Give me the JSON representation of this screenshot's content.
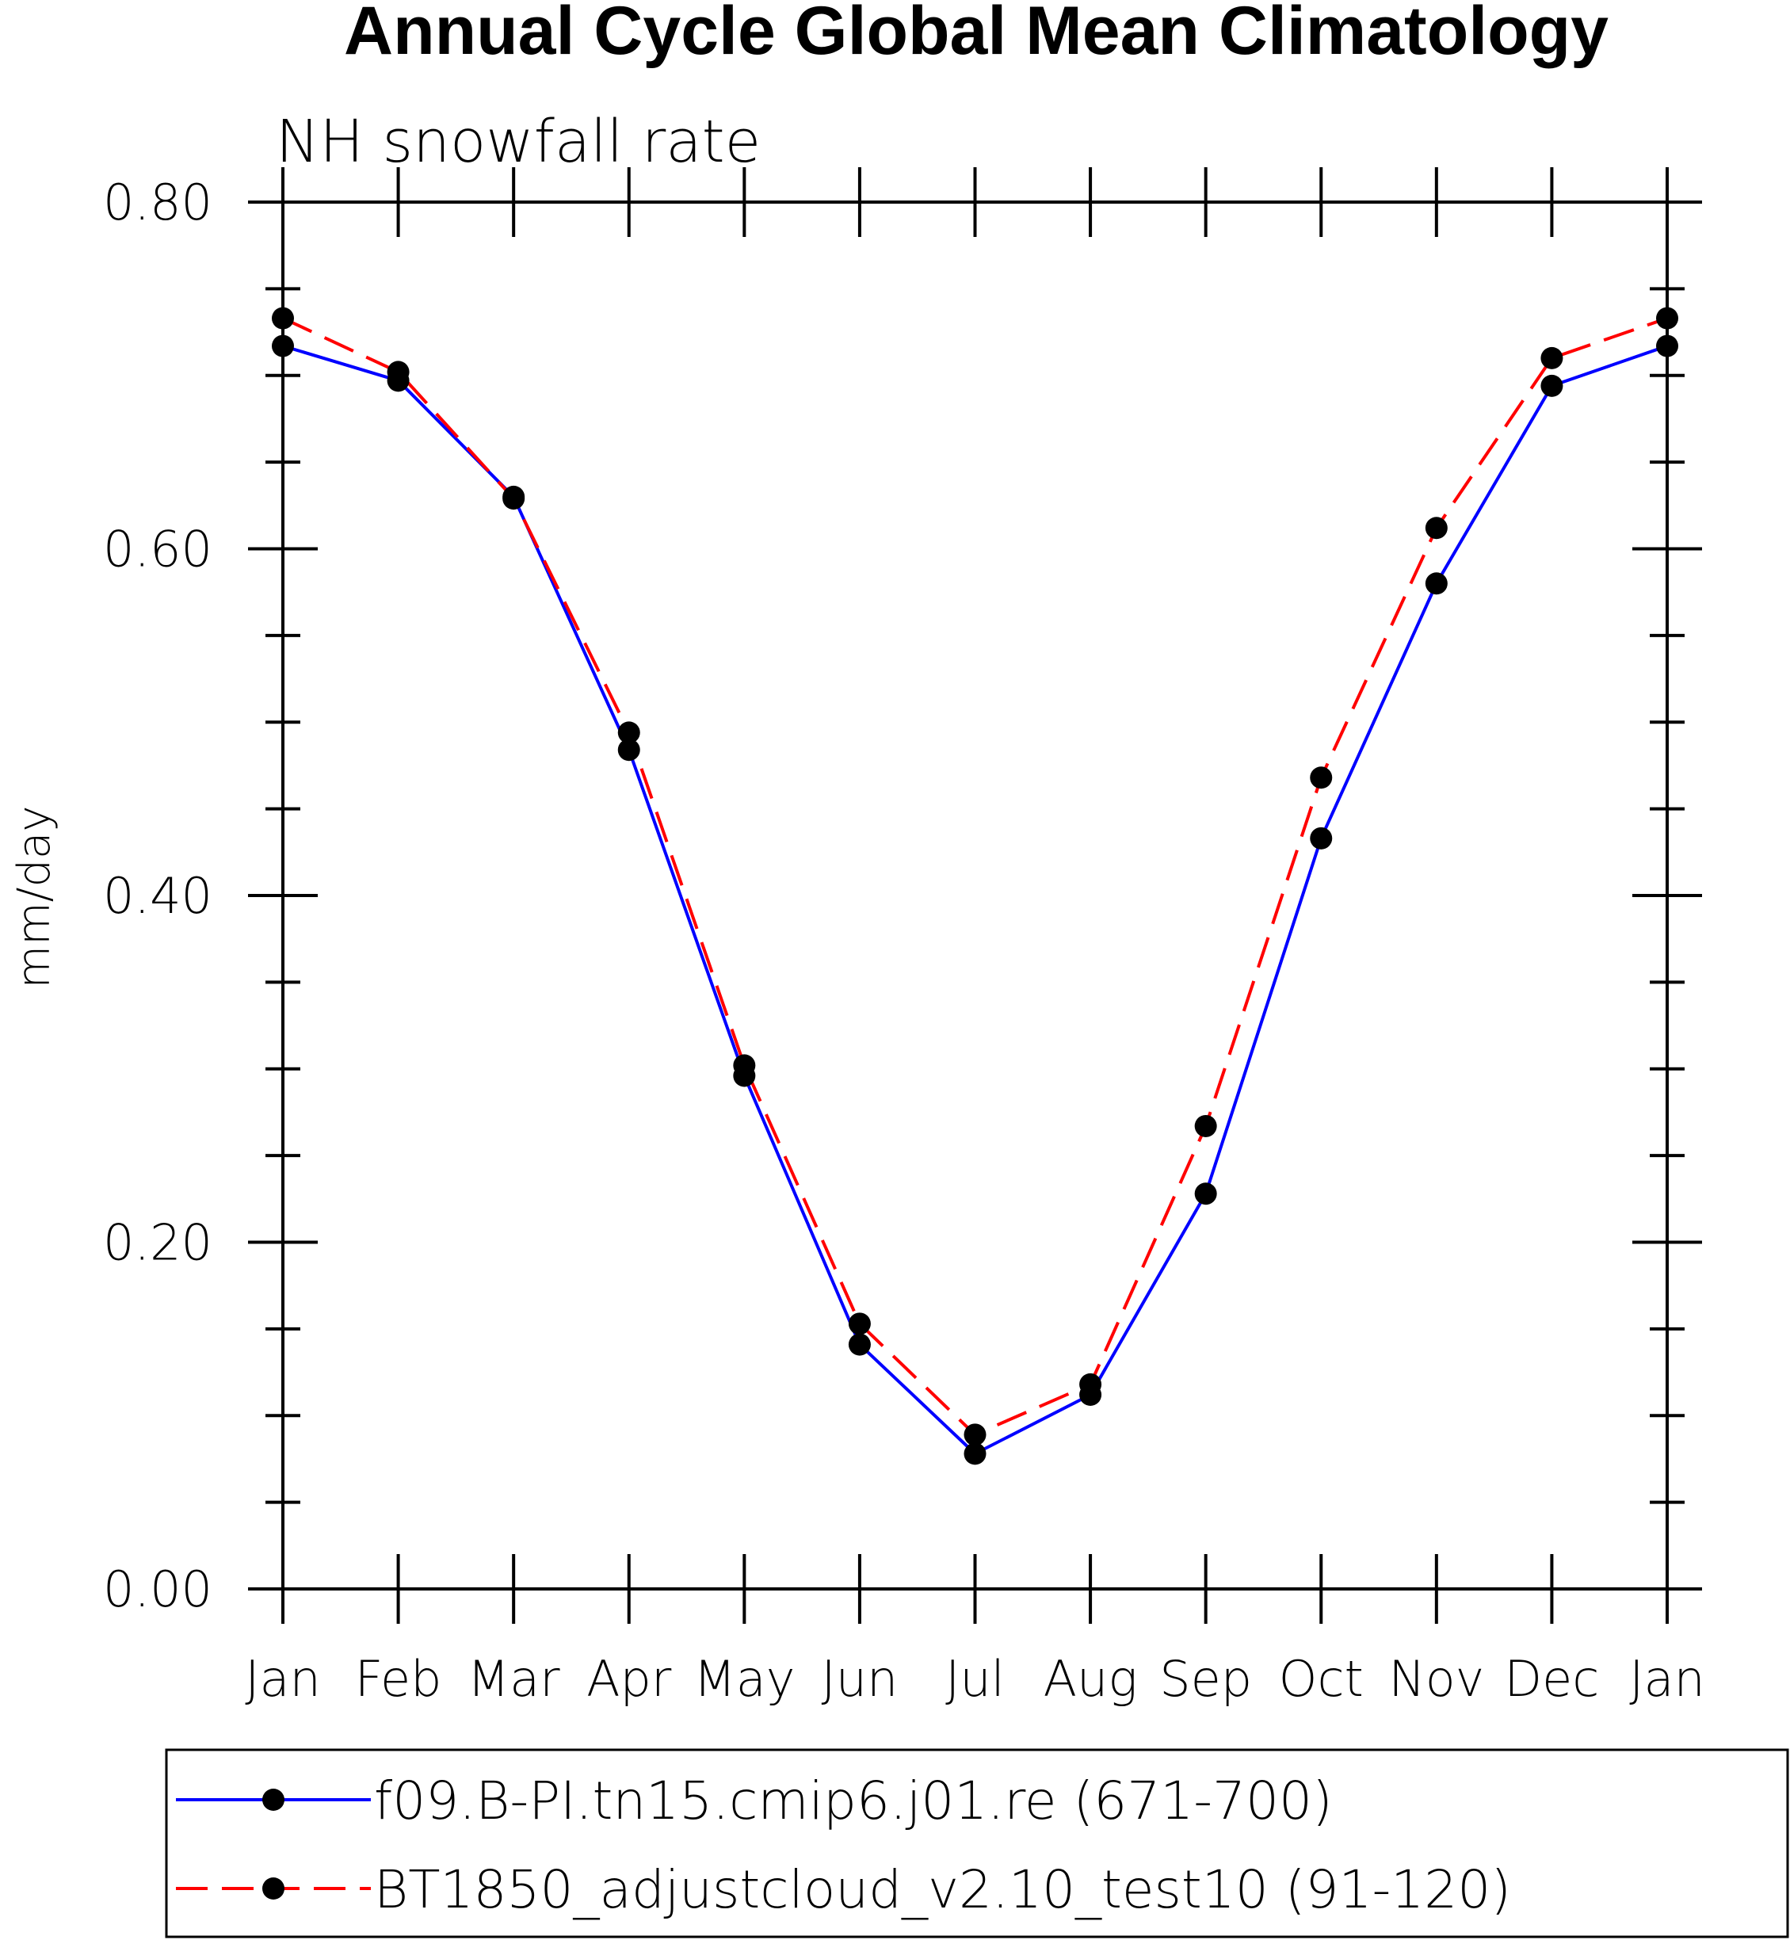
{
  "chart_data": {
    "type": "line",
    "title": "Annual Cycle Global Mean Climatology",
    "subtitle": "NH snowfall rate",
    "xlabel": "",
    "ylabel": "mm/day",
    "ylim": [
      0.0,
      0.8
    ],
    "yticks": [
      "0.00",
      "0.20",
      "0.40",
      "0.60",
      "0.80"
    ],
    "categories": [
      "Jan",
      "Feb",
      "Mar",
      "Apr",
      "May",
      "Jun",
      "Jul",
      "Aug",
      "Sep",
      "Oct",
      "Nov",
      "Dec",
      "Jan"
    ],
    "series": [
      {
        "name": "f09.B-PI.tn15.cmip6.j01.re (671-700)",
        "color": "#0000ff",
        "style": "solid",
        "values": [
          0.717,
          0.697,
          0.63,
          0.484,
          0.296,
          0.141,
          0.078,
          0.112,
          0.228,
          0.433,
          0.58,
          0.694,
          0.717
        ]
      },
      {
        "name": "BT1850_adjustcloud_v2.10_test10 (91-120)",
        "color": "#ff0000",
        "style": "dashed",
        "values": [
          0.733,
          0.702,
          0.629,
          0.494,
          0.302,
          0.153,
          0.089,
          0.118,
          0.267,
          0.468,
          0.612,
          0.71,
          0.733
        ]
      }
    ],
    "legend_position": "bottom"
  }
}
